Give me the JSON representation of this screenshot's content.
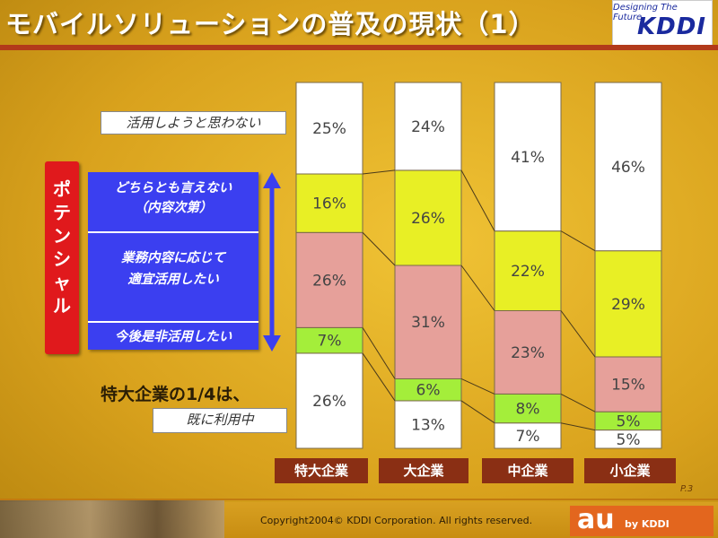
{
  "title": "モバイルソリューションの普及の現状（1）",
  "brand": {
    "tagline": "Designing The Future",
    "logo": "KDDI"
  },
  "labels": {
    "no_intent": "活用しようと思わない",
    "undecided_line1": "どちらとも言えない",
    "undecided_line2": "（内容次第）",
    "appropriate_line1": "業務内容に応じて",
    "appropriate_line2": "適宜活用したい",
    "must_use": "今後是非活用したい",
    "potential": "ポテンシャル",
    "note": "特大企業の1/4は、",
    "in_use": "既に利用中"
  },
  "colors": {
    "in_use": "#ffffff",
    "must_use": "#a4ee3a",
    "appropriate": "#e6a09a",
    "undecided": "#e8ef25",
    "no_intent": "#ffffff",
    "label_panel": "#3b3ff0",
    "potential": "#e0191c",
    "bar_label_bg": "#8a2f14"
  },
  "chart_data": {
    "type": "bar",
    "stacked": true,
    "normalized_100": true,
    "categories": [
      "特大企業",
      "大企業",
      "中企業",
      "小企業"
    ],
    "series": [
      {
        "name": "既に利用中",
        "values": [
          26,
          13,
          7,
          5
        ]
      },
      {
        "name": "今後是非活用したい",
        "values": [
          7,
          6,
          8,
          5
        ]
      },
      {
        "name": "業務内容に応じて適宜活用したい",
        "values": [
          26,
          31,
          23,
          15
        ]
      },
      {
        "name": "どちらとも言えない（内容次第）",
        "values": [
          16,
          26,
          22,
          29
        ]
      },
      {
        "name": "活用しようと思わない",
        "values": [
          25,
          24,
          41,
          46
        ]
      }
    ],
    "ylim": [
      0,
      100
    ],
    "value_format": "{v}%"
  },
  "footer": {
    "page": "P.3",
    "copyright": "Copyright2004© KDDI Corporation. All rights reserved.",
    "au": "au",
    "au_by": "by KDDI"
  }
}
